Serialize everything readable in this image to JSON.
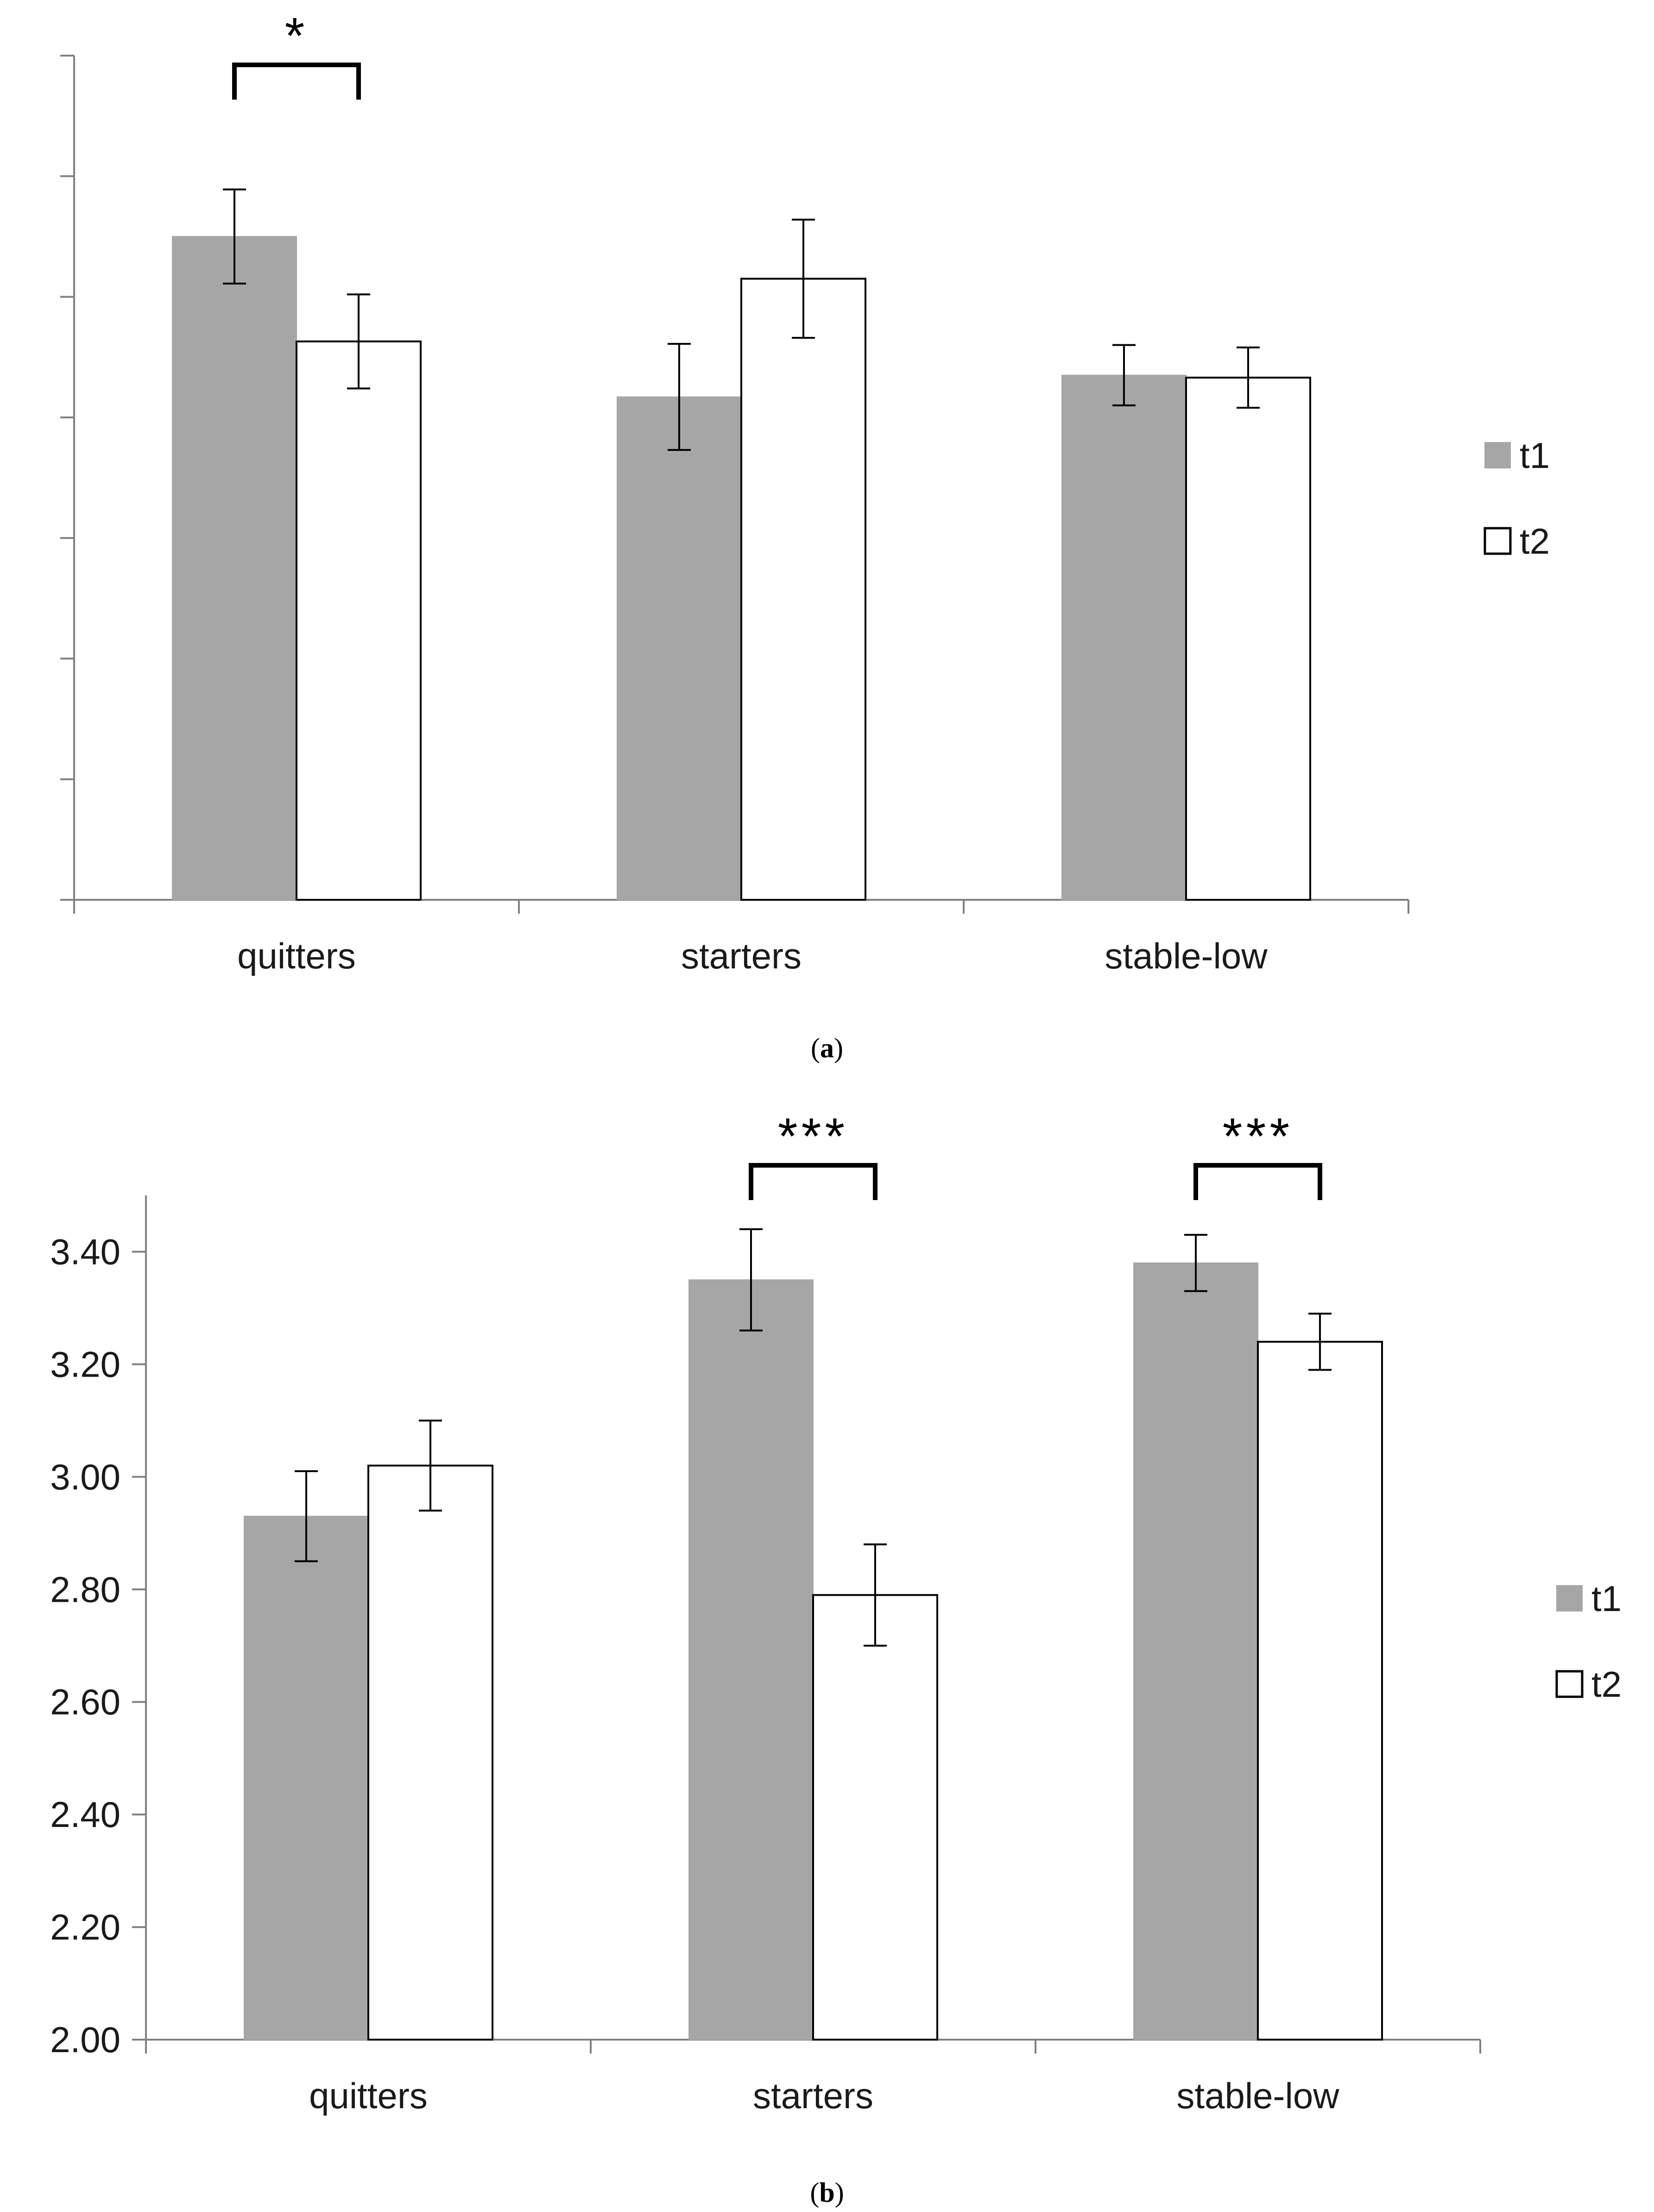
{
  "chart_data": [
    {
      "type": "bar",
      "panel_label": "a",
      "categories": [
        "quitters",
        "starters",
        "stable-low"
      ],
      "series": [
        {
          "name": "t1",
          "color": "#a6a6a6",
          "values": [
            5.5,
            4.17,
            4.35
          ],
          "errors": [
            0.39,
            0.44,
            0.25
          ]
        },
        {
          "name": "t2",
          "color": "#ffffff",
          "values": [
            4.63,
            5.15,
            4.33
          ],
          "errors": [
            0.39,
            0.49,
            0.25
          ]
        }
      ],
      "ylim": [
        0,
        7
      ],
      "yticks": [
        0,
        1,
        2,
        3,
        4,
        5,
        6,
        7
      ],
      "show_tick_labels": false,
      "grid": false,
      "legend_position": "right",
      "significance": [
        {
          "category_index": 0,
          "label": "*"
        }
      ]
    },
    {
      "type": "bar",
      "panel_label": "b",
      "categories": [
        "quitters",
        "starters",
        "stable-low"
      ],
      "series": [
        {
          "name": "t1",
          "color": "#a6a6a6",
          "values": [
            2.93,
            3.35,
            3.38
          ],
          "errors": [
            0.08,
            0.09,
            0.05
          ]
        },
        {
          "name": "t2",
          "color": "#ffffff",
          "values": [
            3.02,
            2.79,
            3.24
          ],
          "errors": [
            0.08,
            0.09,
            0.05
          ]
        }
      ],
      "ylim": [
        2.0,
        3.5
      ],
      "yticks": [
        "2.00",
        "2.20",
        "2.40",
        "2.60",
        "2.80",
        "3.00",
        "3.20",
        "3.40"
      ],
      "show_tick_labels": true,
      "grid": false,
      "legend_position": "right",
      "significance": [
        {
          "category_index": 1,
          "label": "***"
        },
        {
          "category_index": 2,
          "label": "***"
        }
      ]
    }
  ]
}
